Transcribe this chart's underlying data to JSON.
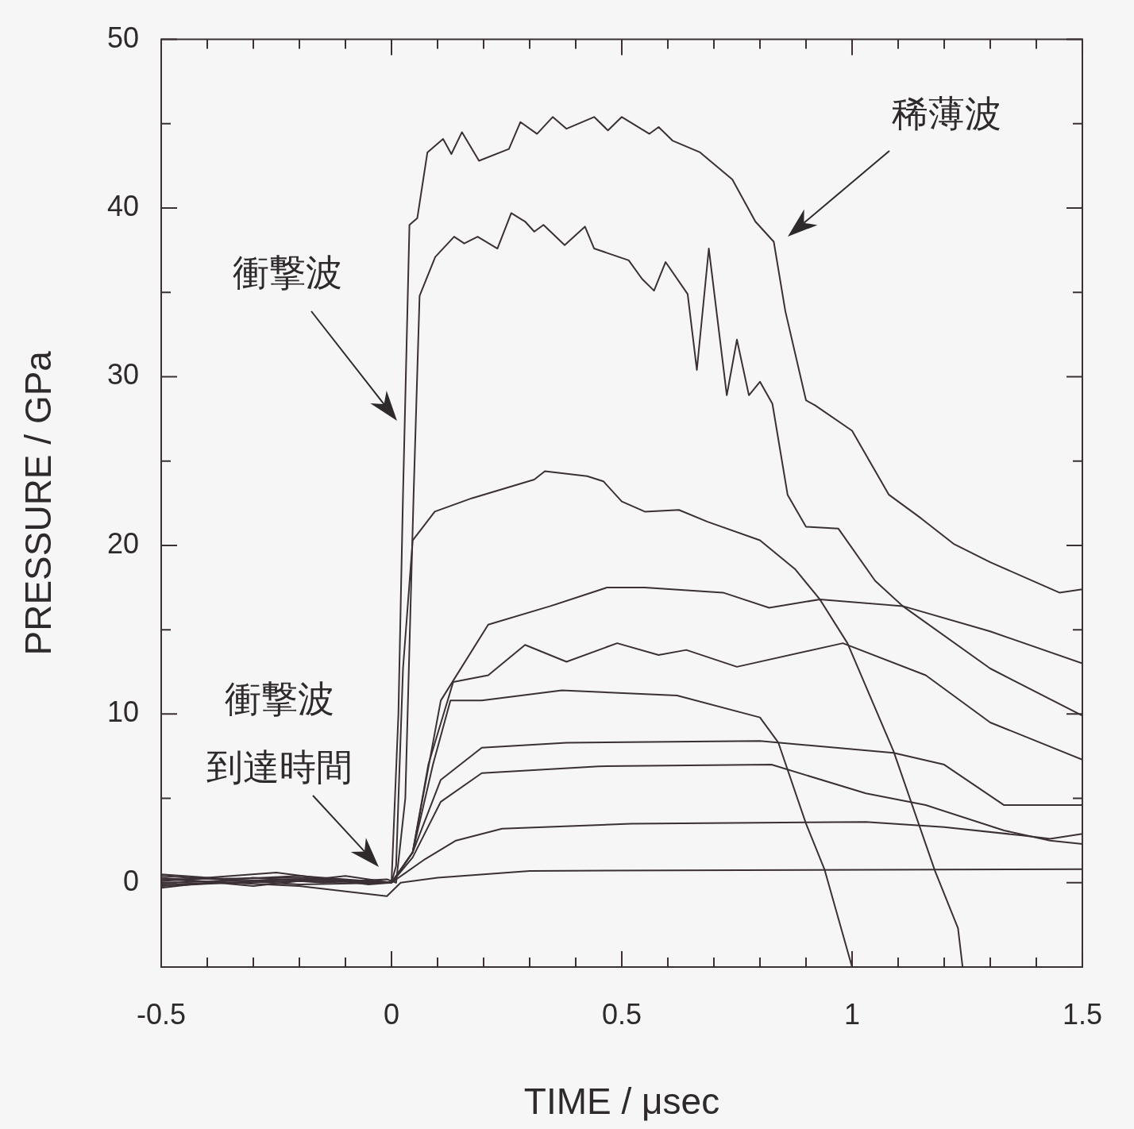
{
  "chart_data": {
    "type": "line",
    "xlabel": "TIME / μsec",
    "ylabel": "PRESSURE / GPa",
    "xlim": [
      -0.5,
      1.5
    ],
    "ylim": [
      -5,
      50
    ],
    "xticks": [
      -0.5,
      {
        "value": -0.4,
        "label": null
      },
      {
        "value": -0.3,
        "label": null
      },
      {
        "value": -0.2,
        "label": null
      },
      {
        "value": -0.1,
        "label": null
      },
      0,
      {
        "value": 0.1,
        "label": null
      },
      {
        "value": 0.2,
        "label": null
      },
      {
        "value": 0.3,
        "label": null
      },
      {
        "value": 0.4,
        "label": null
      },
      0.5,
      {
        "value": 0.6,
        "label": null
      },
      {
        "value": 0.7,
        "label": null
      },
      {
        "value": 0.8,
        "label": null
      },
      {
        "value": 0.9,
        "label": null
      },
      1,
      {
        "value": 1.1,
        "label": null
      },
      {
        "value": 1.2,
        "label": null
      },
      {
        "value": 1.3,
        "label": null
      },
      {
        "value": 1.4,
        "label": null
      },
      1.5
    ],
    "yticks": [
      {
        "value": -5,
        "label": null
      },
      0,
      {
        "value": 5,
        "label": null
      },
      10,
      {
        "value": 15,
        "label": null
      },
      20,
      {
        "value": 25,
        "label": null
      },
      30,
      {
        "value": 35,
        "label": null
      },
      40,
      {
        "value": 45,
        "label": null
      },
      50
    ],
    "grid": false,
    "legend": false,
    "marker": "none",
    "line_style": "solid",
    "annotations": [
      "衝撃波",
      "稀薄波",
      "衝撃波",
      "到達時間"
    ],
    "series": [
      {
        "color": "#3a3035",
        "x": [
          -0.5,
          -0.35,
          -0.2,
          -0.05,
          0,
          0.015,
          0.025,
          0.039,
          0.056,
          0.078,
          0.112,
          0.13,
          0.153,
          0.19,
          0.255,
          0.28,
          0.316,
          0.35,
          0.38,
          0.44,
          0.47,
          0.5,
          0.56,
          0.58,
          0.61,
          0.67,
          0.74,
          0.79,
          0.83,
          0.855,
          0.9,
          0.92,
          1.0,
          1.08,
          1.15,
          1.22,
          1.3,
          1.4,
          1.45,
          1.5
        ],
        "values": [
          0.5,
          0.2,
          0.4,
          0.1,
          0,
          10,
          23,
          39,
          39.4,
          43.3,
          44.1,
          43.2,
          44.5,
          42.8,
          43.5,
          45.1,
          44.4,
          45.4,
          44.7,
          45.4,
          44.6,
          45.4,
          44.4,
          44.8,
          44,
          43.3,
          41.7,
          39.2,
          38,
          33.9,
          28.6,
          28.3,
          26.8,
          23,
          21.6,
          20.1,
          19,
          17.8,
          17.2,
          17.4
        ]
      },
      {
        "color": "#3a3035",
        "x": [
          -0.5,
          -0.3,
          -0.15,
          -0.01,
          0.01,
          0.03,
          0.048,
          0.061,
          0.095,
          0.136,
          0.158,
          0.187,
          0.23,
          0.26,
          0.29,
          0.31,
          0.33,
          0.376,
          0.42,
          0.44,
          0.515,
          0.544,
          0.57,
          0.595,
          0.643,
          0.663,
          0.689,
          0.728,
          0.75,
          0.776,
          0.8,
          0.827,
          0.86,
          0.9,
          0.97,
          1.05,
          1.11,
          1.3,
          1.5
        ],
        "values": [
          -0.3,
          0.3,
          0,
          0.2,
          0,
          5,
          23,
          34.8,
          37.1,
          38.3,
          37.9,
          38.3,
          37.6,
          39.7,
          39.2,
          38.6,
          39,
          37.8,
          38.9,
          37.6,
          36.9,
          35.8,
          35.1,
          36.8,
          34.9,
          30.4,
          37.6,
          28.9,
          32.2,
          28.9,
          29.7,
          28.4,
          23,
          21.1,
          21,
          17.9,
          16.4,
          12.7,
          9.9
        ]
      },
      {
        "color": "#3a3035",
        "x": [
          -0.5,
          -0.3,
          -0.1,
          0,
          0.01,
          0.025,
          0.046,
          0.094,
          0.175,
          0.31,
          0.333,
          0.425,
          0.46,
          0.5,
          0.55,
          0.624,
          0.686,
          0.8,
          0.876,
          0.93,
          0.99,
          1.09,
          1.18,
          1.23,
          1.24
        ],
        "values": [
          0.3,
          -0.2,
          0.4,
          0,
          1,
          12.7,
          20.3,
          22,
          22.8,
          23.9,
          24.4,
          24.1,
          23.8,
          22.6,
          22,
          22.1,
          21.4,
          20.3,
          18.6,
          16.8,
          14.2,
          7.8,
          0.7,
          -2.7,
          -5
        ]
      },
      {
        "color": "#3a3035",
        "x": [
          -0.5,
          -0.25,
          -0.05,
          0,
          0.046,
          0.107,
          0.21,
          0.345,
          0.468,
          0.55,
          0.72,
          0.82,
          0.93,
          1.11,
          1.3,
          1.5
        ],
        "values": [
          0.1,
          0.6,
          -0.1,
          0,
          1.8,
          10.8,
          15.3,
          16.4,
          17.5,
          17.5,
          17.2,
          16.3,
          16.8,
          16.4,
          14.9,
          13
        ]
      },
      {
        "color": "#3a3035",
        "x": [
          -0.5,
          -0.2,
          0,
          0.046,
          0.08,
          0.134,
          0.21,
          0.29,
          0.38,
          0.49,
          0.58,
          0.64,
          0.75,
          0.98,
          1.16,
          1.3,
          1.5
        ],
        "values": [
          -0.2,
          0.2,
          0,
          1.8,
          7,
          11.9,
          12.3,
          14.1,
          13.1,
          14.2,
          13.5,
          13.8,
          12.8,
          14.2,
          12.3,
          9.5,
          7.3
        ]
      },
      {
        "color": "#3a3035",
        "x": [
          -0.5,
          -0.2,
          0,
          0.046,
          0.09,
          0.128,
          0.196,
          0.37,
          0.62,
          0.8,
          0.84,
          0.9,
          0.94,
          1.0
        ],
        "values": [
          0.4,
          -0.1,
          0,
          1.8,
          7,
          10.8,
          10.8,
          11.4,
          11.1,
          9.8,
          8.3,
          3.5,
          0.8,
          -5
        ]
      },
      {
        "color": "#3a3035",
        "x": [
          -0.5,
          -0.2,
          0,
          0.046,
          0.107,
          0.196,
          0.38,
          0.8,
          1.09,
          1.2,
          1.33,
          1.43,
          1.5
        ],
        "values": [
          0.2,
          0.3,
          0,
          1.8,
          6.1,
          8,
          8.3,
          8.4,
          7.7,
          7,
          4.6,
          4.6,
          4.6
        ]
      },
      {
        "color": "#3a3035",
        "x": [
          -0.5,
          -0.2,
          0,
          0.046,
          0.107,
          0.196,
          0.45,
          0.825,
          1.03,
          1.16,
          1.33,
          1.43,
          1.5
        ],
        "values": [
          -0.1,
          0.1,
          0,
          1.5,
          4.8,
          6.5,
          6.9,
          7,
          5.3,
          4.6,
          3.1,
          2.5,
          2.3
        ]
      },
      {
        "color": "#3a3035",
        "x": [
          -0.5,
          -0.2,
          0,
          0.073,
          0.14,
          0.24,
          0.52,
          1.03,
          1.2,
          1.37,
          1.43,
          1.5
        ],
        "values": [
          0,
          0.2,
          0,
          1.4,
          2.5,
          3.2,
          3.5,
          3.6,
          3.3,
          2.8,
          2.6,
          2.9
        ]
      },
      {
        "color": "#3a3035",
        "x": [
          -0.5,
          -0.2,
          -0.01,
          0.02,
          0.1,
          0.3,
          1.5
        ],
        "values": [
          0.2,
          -0.2,
          -0.8,
          0,
          0.3,
          0.7,
          0.8
        ]
      }
    ]
  }
}
